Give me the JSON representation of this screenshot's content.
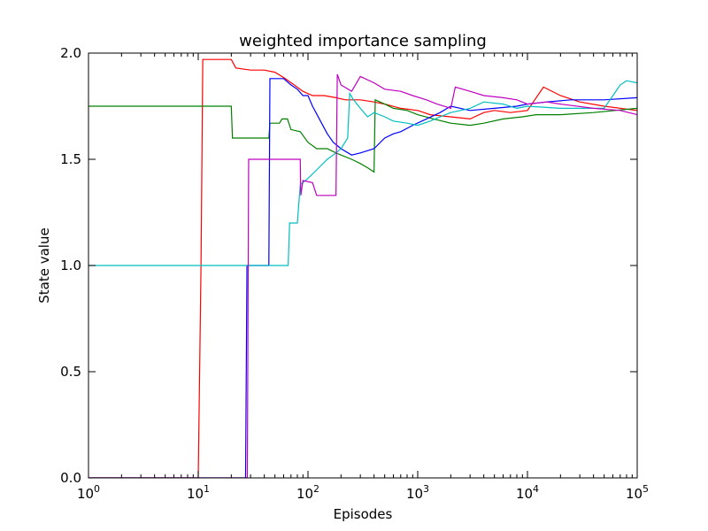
{
  "chart_data": {
    "type": "line",
    "title": "weighted importance sampling",
    "xlabel": "Episodes",
    "ylabel": "State value",
    "xscale": "log",
    "xlim": [
      1,
      100000
    ],
    "ylim": [
      0.0,
      2.0
    ],
    "grid": false,
    "legend": "none",
    "xticks": [
      {
        "value": 1,
        "base": "10",
        "exp": "0"
      },
      {
        "value": 10,
        "base": "10",
        "exp": "1"
      },
      {
        "value": 100,
        "base": "10",
        "exp": "2"
      },
      {
        "value": 1000,
        "base": "10",
        "exp": "3"
      },
      {
        "value": 10000,
        "base": "10",
        "exp": "4"
      },
      {
        "value": 100000,
        "base": "10",
        "exp": "5"
      }
    ],
    "yticks": [
      {
        "value": 0.0,
        "label": "0.0"
      },
      {
        "value": 0.5,
        "label": "0.5"
      },
      {
        "value": 1.0,
        "label": "1.0"
      },
      {
        "value": 1.5,
        "label": "1.5"
      },
      {
        "value": 2.0,
        "label": "2.0"
      }
    ],
    "series": [
      {
        "color": "#ff0000",
        "points": [
          [
            1,
            0.0
          ],
          [
            10,
            0.0
          ],
          [
            10.6,
            1.0
          ],
          [
            11,
            1.97
          ],
          [
            14,
            1.97
          ],
          [
            20,
            1.97
          ],
          [
            22,
            1.93
          ],
          [
            30,
            1.92
          ],
          [
            40,
            1.92
          ],
          [
            50,
            1.91
          ],
          [
            62,
            1.88
          ],
          [
            75,
            1.85
          ],
          [
            90,
            1.82
          ],
          [
            110,
            1.8
          ],
          [
            140,
            1.8
          ],
          [
            180,
            1.79
          ],
          [
            220,
            1.78
          ],
          [
            300,
            1.78
          ],
          [
            400,
            1.77
          ],
          [
            500,
            1.76
          ],
          [
            700,
            1.74
          ],
          [
            1000,
            1.73
          ],
          [
            1300,
            1.71
          ],
          [
            2000,
            1.7
          ],
          [
            3000,
            1.69
          ],
          [
            4000,
            1.72
          ],
          [
            5000,
            1.73
          ],
          [
            7000,
            1.72
          ],
          [
            10000,
            1.73
          ],
          [
            14000,
            1.84
          ],
          [
            20000,
            1.8
          ],
          [
            30000,
            1.77
          ],
          [
            50000,
            1.75
          ],
          [
            100000,
            1.73
          ]
        ]
      },
      {
        "color": "#008000",
        "points": [
          [
            1,
            1.75
          ],
          [
            20,
            1.75
          ],
          [
            20.5,
            1.6
          ],
          [
            35,
            1.6
          ],
          [
            44,
            1.6
          ],
          [
            45,
            1.67
          ],
          [
            55,
            1.67
          ],
          [
            58,
            1.69
          ],
          [
            65,
            1.69
          ],
          [
            70,
            1.64
          ],
          [
            85,
            1.63
          ],
          [
            100,
            1.58
          ],
          [
            120,
            1.55
          ],
          [
            150,
            1.55
          ],
          [
            180,
            1.53
          ],
          [
            200,
            1.52
          ],
          [
            250,
            1.5
          ],
          [
            300,
            1.48
          ],
          [
            350,
            1.46
          ],
          [
            400,
            1.44
          ],
          [
            410,
            1.78
          ],
          [
            500,
            1.76
          ],
          [
            600,
            1.74
          ],
          [
            800,
            1.73
          ],
          [
            1000,
            1.71
          ],
          [
            1400,
            1.69
          ],
          [
            2000,
            1.67
          ],
          [
            3000,
            1.66
          ],
          [
            4000,
            1.67
          ],
          [
            6000,
            1.69
          ],
          [
            9000,
            1.7
          ],
          [
            12000,
            1.71
          ],
          [
            20000,
            1.71
          ],
          [
            40000,
            1.72
          ],
          [
            100000,
            1.74
          ]
        ]
      },
      {
        "color": "#0000ff",
        "points": [
          [
            1,
            0.0
          ],
          [
            27,
            0.0
          ],
          [
            27.8,
            1.0
          ],
          [
            35,
            1.0
          ],
          [
            44,
            1.0
          ],
          [
            45,
            1.88
          ],
          [
            60,
            1.88
          ],
          [
            70,
            1.85
          ],
          [
            80,
            1.83
          ],
          [
            90,
            1.8
          ],
          [
            100,
            1.8
          ],
          [
            110,
            1.75
          ],
          [
            130,
            1.68
          ],
          [
            150,
            1.62
          ],
          [
            170,
            1.58
          ],
          [
            200,
            1.55
          ],
          [
            250,
            1.52
          ],
          [
            300,
            1.53
          ],
          [
            400,
            1.55
          ],
          [
            500,
            1.6
          ],
          [
            600,
            1.62
          ],
          [
            700,
            1.63
          ],
          [
            900,
            1.66
          ],
          [
            1200,
            1.69
          ],
          [
            1600,
            1.72
          ],
          [
            2000,
            1.75
          ],
          [
            3000,
            1.73
          ],
          [
            5000,
            1.74
          ],
          [
            8000,
            1.75
          ],
          [
            10000,
            1.76
          ],
          [
            15000,
            1.77
          ],
          [
            25000,
            1.78
          ],
          [
            50000,
            1.78
          ],
          [
            100000,
            1.79
          ]
        ]
      },
      {
        "color": "#00bfbf",
        "points": [
          [
            1,
            1.0
          ],
          [
            30,
            1.0
          ],
          [
            66,
            1.0
          ],
          [
            68,
            1.2
          ],
          [
            80,
            1.2
          ],
          [
            85,
            1.38
          ],
          [
            100,
            1.41
          ],
          [
            120,
            1.45
          ],
          [
            150,
            1.5
          ],
          [
            180,
            1.53
          ],
          [
            200,
            1.55
          ],
          [
            230,
            1.6
          ],
          [
            240,
            1.81
          ],
          [
            260,
            1.78
          ],
          [
            300,
            1.74
          ],
          [
            350,
            1.7
          ],
          [
            400,
            1.72
          ],
          [
            500,
            1.7
          ],
          [
            600,
            1.68
          ],
          [
            800,
            1.67
          ],
          [
            1000,
            1.66
          ],
          [
            1300,
            1.68
          ],
          [
            1600,
            1.7
          ],
          [
            2000,
            1.72
          ],
          [
            3000,
            1.74
          ],
          [
            4000,
            1.77
          ],
          [
            6000,
            1.76
          ],
          [
            8000,
            1.74
          ],
          [
            10000,
            1.75
          ],
          [
            20000,
            1.74
          ],
          [
            50000,
            1.74
          ],
          [
            70000,
            1.85
          ],
          [
            80000,
            1.87
          ],
          [
            100000,
            1.86
          ]
        ]
      },
      {
        "color": "#bf00bf",
        "points": [
          [
            1,
            0.0
          ],
          [
            28,
            0.0
          ],
          [
            28.8,
            1.5
          ],
          [
            40,
            1.5
          ],
          [
            60,
            1.5
          ],
          [
            85,
            1.5
          ],
          [
            86,
            1.33
          ],
          [
            90,
            1.4
          ],
          [
            110,
            1.39
          ],
          [
            120,
            1.33
          ],
          [
            180,
            1.33
          ],
          [
            185,
            1.9
          ],
          [
            200,
            1.85
          ],
          [
            250,
            1.82
          ],
          [
            300,
            1.89
          ],
          [
            400,
            1.86
          ],
          [
            500,
            1.83
          ],
          [
            700,
            1.82
          ],
          [
            900,
            1.8
          ],
          [
            1200,
            1.78
          ],
          [
            1500,
            1.76
          ],
          [
            2000,
            1.74
          ],
          [
            2200,
            1.84
          ],
          [
            3000,
            1.82
          ],
          [
            4000,
            1.8
          ],
          [
            6000,
            1.79
          ],
          [
            8000,
            1.78
          ],
          [
            10000,
            1.76
          ],
          [
            15000,
            1.77
          ],
          [
            20000,
            1.76
          ],
          [
            40000,
            1.74
          ],
          [
            70000,
            1.73
          ],
          [
            100000,
            1.71
          ]
        ]
      }
    ]
  }
}
